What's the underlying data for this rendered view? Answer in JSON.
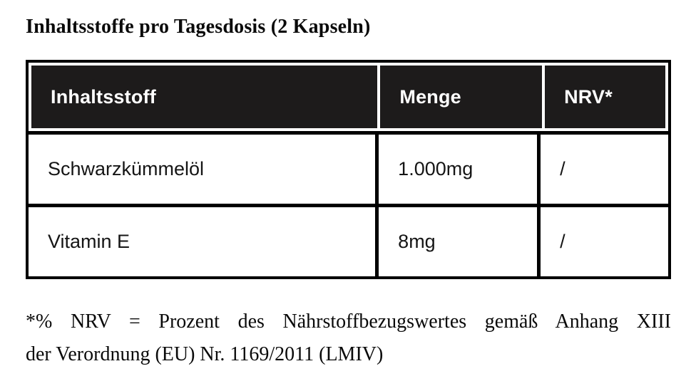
{
  "title": "Inhaltsstoffe pro Tagesdosis (2 Kapseln)",
  "table": {
    "headers": [
      "Inhaltsstoff",
      "Menge",
      "NRV*"
    ],
    "rows": [
      {
        "name": "Schwarzkümmelöl",
        "amount": "1.000mg",
        "nrv": "/"
      },
      {
        "name": "Vitamin E",
        "amount": "8mg",
        "nrv": "/"
      }
    ],
    "header_bg": "#1d1b1b",
    "border_color": "#000000"
  },
  "footnote": {
    "line1": "*% NRV = Prozent des Nährstoffbezugswertes gemäß Anhang XIII",
    "line2": "der Verordnung (EU) Nr. 1169/2011 (LMIV)"
  }
}
